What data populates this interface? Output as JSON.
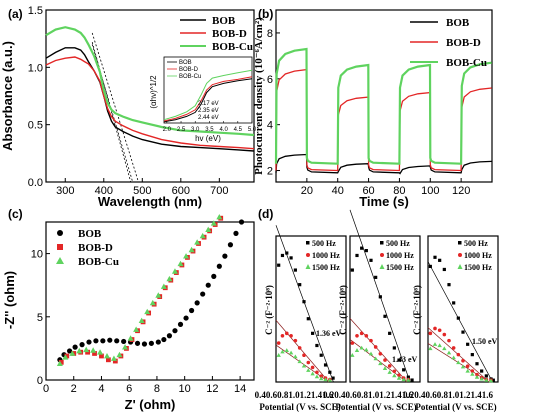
{
  "chart_data": [
    {
      "panel": "(a)",
      "type": "line",
      "xlabel": "Wavelength (nm)",
      "ylabel": "Absorbance (a.u.)",
      "xlim": [
        250,
        790
      ],
      "ylim": [
        0,
        1.5
      ],
      "xticks": [
        300,
        400,
        500,
        600,
        700
      ],
      "yticks": [
        0.0,
        0.5,
        1.0,
        1.5
      ],
      "legend_position": "top-right",
      "series": [
        {
          "name": "BOB",
          "color": "#000000",
          "x": [
            250,
            275,
            300,
            325,
            340,
            350,
            360,
            375,
            390,
            400,
            410,
            420,
            430,
            450,
            475,
            500,
            550,
            600,
            650,
            700,
            750,
            790
          ],
          "y": [
            1.08,
            1.13,
            1.17,
            1.17,
            1.15,
            1.11,
            1.05,
            0.97,
            0.87,
            0.75,
            0.62,
            0.53,
            0.48,
            0.44,
            0.4,
            0.37,
            0.33,
            0.31,
            0.3,
            0.29,
            0.28,
            0.27
          ]
        },
        {
          "name": "BOB-D",
          "color": "#e32626",
          "x": [
            250,
            275,
            300,
            325,
            340,
            350,
            360,
            375,
            390,
            400,
            410,
            420,
            430,
            450,
            475,
            500,
            550,
            600,
            650,
            700,
            750,
            790
          ],
          "y": [
            1.02,
            1.06,
            1.08,
            1.09,
            1.07,
            1.05,
            1.03,
            0.97,
            0.88,
            0.75,
            0.64,
            0.57,
            0.53,
            0.49,
            0.45,
            0.42,
            0.37,
            0.34,
            0.32,
            0.31,
            0.3,
            0.29
          ]
        },
        {
          "name": "BOB-Cu",
          "color": "#5fd35f",
          "x": [
            250,
            275,
            300,
            325,
            340,
            350,
            360,
            375,
            390,
            400,
            410,
            420,
            430,
            450,
            475,
            500,
            550,
            600,
            650,
            700,
            750,
            790
          ],
          "y": [
            1.28,
            1.33,
            1.35,
            1.33,
            1.3,
            1.26,
            1.2,
            1.1,
            0.96,
            0.8,
            0.69,
            0.63,
            0.6,
            0.57,
            0.54,
            0.52,
            0.48,
            0.45,
            0.44,
            0.43,
            0.42,
            0.41
          ]
        }
      ],
      "tangent_lines": [
        {
          "x": [
            370,
            475
          ],
          "y": [
            1.2,
            0.0
          ]
        },
        {
          "x": [
            370,
            470
          ],
          "y": [
            1.22,
            0.0
          ]
        },
        {
          "x": [
            370,
            490
          ],
          "y": [
            1.3,
            0.0
          ]
        }
      ],
      "inset": {
        "xlabel": "hv (eV)",
        "ylabel": "(αhν)^1/2",
        "xlim": [
          1.9,
          5.0
        ],
        "xticks": [
          2.0,
          2.5,
          3.0,
          3.5,
          4.0,
          4.5,
          5.0
        ],
        "x_ticklabels": [
          "2.0",
          "2.5",
          "3.0",
          "3.5",
          "4.0",
          "4.5",
          "5.0"
        ],
        "ylim": [
          0,
          1
        ],
        "legend": [
          "BOB",
          "BOB-D",
          "BOB-Cu"
        ],
        "annotations": [
          "2.17 eV",
          "2.35 eV",
          "2.44 eV"
        ],
        "series": [
          {
            "name": "BOB",
            "color": "#000000",
            "x": [
              1.9,
              2.3,
              2.7,
              3.0,
              3.2,
              3.4,
              3.6,
              4.0,
              4.5,
              5.0
            ],
            "y": [
              0.02,
              0.05,
              0.1,
              0.16,
              0.28,
              0.46,
              0.55,
              0.6,
              0.64,
              0.67
            ]
          },
          {
            "name": "BOB-D",
            "color": "#e32626",
            "x": [
              1.9,
              2.3,
              2.7,
              3.0,
              3.2,
              3.4,
              3.6,
              4.0,
              4.5,
              5.0
            ],
            "y": [
              0.03,
              0.07,
              0.13,
              0.2,
              0.33,
              0.5,
              0.58,
              0.63,
              0.66,
              0.7
            ]
          },
          {
            "name": "BOB-Cu",
            "color": "#5fd35f",
            "x": [
              1.9,
              2.3,
              2.7,
              3.0,
              3.2,
              3.4,
              3.6,
              4.0,
              4.5,
              5.0
            ],
            "y": [
              0.05,
              0.1,
              0.17,
              0.26,
              0.42,
              0.6,
              0.68,
              0.72,
              0.76,
              0.8
            ]
          }
        ]
      }
    },
    {
      "panel": "(b)",
      "type": "line",
      "xlabel": "Time (s)",
      "ylabel": "Photocurrent density (10⁻⁶A/cm²)",
      "xlim": [
        0,
        140
      ],
      "ylim": [
        1.5,
        9
      ],
      "xticks": [
        20,
        40,
        60,
        80,
        100,
        120
      ],
      "yticks": [
        2,
        4,
        6,
        8
      ],
      "legend_position": "top-right",
      "on_off_period_s": 20,
      "series": [
        {
          "name": "BOB",
          "color": "#000000",
          "dark_level": 1.9,
          "on_peak": 3.0,
          "on_steady": [
            2.7,
            2.3,
            2.2,
            2.4,
            2.4,
            2.5,
            2.6
          ]
        },
        {
          "name": "BOB-D",
          "color": "#e32626",
          "dark_level": 2.0,
          "on_peak": 6.5,
          "on_steady": [
            6.4,
            5.2,
            5.4,
            5.6,
            5.8,
            6.0,
            6.4
          ]
        },
        {
          "name": "BOB-Cu",
          "color": "#5fd35f",
          "dark_level": 2.3,
          "on_peak": 7.4,
          "on_steady": [
            7.3,
            6.6,
            6.6,
            6.7,
            6.8,
            6.8,
            6.9
          ]
        }
      ]
    },
    {
      "panel": "(c)",
      "type": "scatter",
      "xlabel": "Z' (ohm)",
      "ylabel": "-Z'' (ohm)",
      "xlim": [
        0,
        15
      ],
      "ylim": [
        0,
        12.5
      ],
      "xticks": [
        0,
        2,
        4,
        6,
        8,
        10,
        12,
        14
      ],
      "yticks": [
        0,
        5,
        10
      ],
      "legend_position": "top-left",
      "series": [
        {
          "name": "BOB",
          "color": "#000000",
          "marker": "circle",
          "x": [
            1.0,
            1.3,
            1.7,
            2.1,
            2.6,
            3.1,
            3.6,
            4.1,
            4.6,
            5.1,
            5.6,
            6.1,
            6.6,
            7.1,
            7.6,
            8.1,
            8.5,
            8.9,
            9.3,
            9.7,
            10.1,
            10.5,
            10.9,
            11.3,
            11.7,
            12.1,
            12.5,
            12.9,
            13.3,
            13.7,
            14.1
          ],
          "y": [
            1.6,
            2.0,
            2.3,
            2.6,
            2.8,
            3.0,
            3.1,
            3.1,
            3.15,
            3.1,
            3.05,
            3.0,
            2.9,
            2.85,
            2.9,
            3.0,
            3.2,
            3.5,
            3.9,
            4.4,
            4.9,
            5.5,
            6.1,
            6.8,
            7.5,
            8.2,
            9.0,
            9.8,
            10.7,
            11.6,
            12.5
          ]
        },
        {
          "name": "BOB-D",
          "color": "#e32626",
          "marker": "square",
          "x": [
            1.1,
            1.5,
            2.0,
            2.5,
            3.0,
            3.5,
            4.0,
            4.5,
            5.0,
            5.4,
            5.8,
            6.2,
            6.6,
            7.0,
            7.4,
            7.8,
            8.2,
            8.6,
            9.0,
            9.4,
            9.8,
            10.2,
            10.6,
            11.0,
            11.4,
            11.8,
            12.2,
            12.6
          ],
          "y": [
            1.4,
            1.9,
            2.1,
            2.2,
            2.2,
            2.1,
            1.9,
            1.6,
            1.5,
            1.9,
            2.5,
            3.2,
            3.9,
            4.6,
            5.3,
            6.0,
            6.6,
            7.3,
            7.9,
            8.5,
            9.1,
            9.7,
            10.2,
            10.8,
            11.3,
            11.8,
            12.3,
            12.8
          ]
        },
        {
          "name": "BOB-Cu",
          "color": "#5fd35f",
          "marker": "triangle",
          "x": [
            1.0,
            1.4,
            1.9,
            2.4,
            2.9,
            3.4,
            3.9,
            4.4,
            4.9,
            5.3,
            5.7,
            6.1,
            6.5,
            6.9,
            7.3,
            7.7,
            8.1,
            8.5,
            8.9,
            9.3,
            9.7,
            10.1,
            10.5,
            10.9,
            11.3,
            11.7,
            12.1,
            12.5
          ],
          "y": [
            1.3,
            1.8,
            2.1,
            2.3,
            2.4,
            2.35,
            2.2,
            1.9,
            1.7,
            2.0,
            2.6,
            3.3,
            4.0,
            4.7,
            5.4,
            6.1,
            6.7,
            7.4,
            8.0,
            8.6,
            9.2,
            9.8,
            10.3,
            10.9,
            11.4,
            11.9,
            12.4,
            12.9
          ]
        }
      ]
    },
    {
      "panel": "(d)",
      "type": "scatter",
      "xlabel": "Potential (V vs. SCE)",
      "ylabel": "C⁻² (F⁻²·10⁸)",
      "legend": [
        "500 Hz",
        "1000 Hz",
        "1500 Hz"
      ],
      "legend_colors": [
        "#000000",
        "#e32626",
        "#5fd35f"
      ],
      "xticks_text": [
        "0.40.60.81.01.21.41.6",
        "0.20.40.60.81.01.21.41.6",
        "0.20.40.60.81.01.21.41.6"
      ],
      "flatband_labels": [
        "1.36 eV",
        "1.43 eV",
        "1.50 eV"
      ],
      "subplots": [
        {
          "xlim": [
            0.3,
            1.6
          ],
          "ylim": [
            0,
            3
          ],
          "series": [
            {
              "name": "500 Hz",
              "x": [
                0.35,
                0.42,
                0.5,
                0.58,
                0.66,
                0.74,
                0.82,
                0.9,
                0.98,
                1.06,
                1.14,
                1.22,
                1.3,
                1.36
              ],
              "y": [
                2.4,
                2.6,
                2.65,
                2.55,
                2.3,
                2.0,
                1.65,
                1.3,
                1.0,
                0.75,
                0.55,
                0.35,
                0.2,
                0.08
              ]
            },
            {
              "name": "1000 Hz",
              "x": [
                0.35,
                0.42,
                0.5,
                0.58,
                0.66,
                0.74,
                0.82,
                0.9,
                0.98,
                1.06,
                1.14,
                1.22,
                1.3
              ],
              "y": [
                0.8,
                0.95,
                1.0,
                0.95,
                0.85,
                0.7,
                0.55,
                0.4,
                0.3,
                0.2,
                0.12,
                0.08,
                0.05
              ]
            },
            {
              "name": "1500 Hz",
              "x": [
                0.35,
                0.42,
                0.5,
                0.58,
                0.66,
                0.74,
                0.82,
                0.9,
                0.98,
                1.06,
                1.14,
                1.22,
                1.3
              ],
              "y": [
                0.55,
                0.62,
                0.65,
                0.6,
                0.52,
                0.42,
                0.33,
                0.24,
                0.17,
                0.11,
                0.07,
                0.05,
                0.04
              ]
            }
          ]
        },
        {
          "xlim": [
            0.1,
            1.6
          ],
          "ylim": [
            0,
            3
          ],
          "series": [
            {
              "name": "500 Hz",
              "x": [
                0.15,
                0.25,
                0.35,
                0.45,
                0.55,
                0.65,
                0.75,
                0.85,
                0.95,
                1.05,
                1.15,
                1.25,
                1.35,
                1.43
              ],
              "y": [
                2.3,
                2.6,
                2.75,
                2.7,
                2.5,
                2.15,
                1.75,
                1.35,
                1.0,
                0.7,
                0.45,
                0.25,
                0.1,
                0.04
              ]
            },
            {
              "name": "1000 Hz",
              "x": [
                0.15,
                0.25,
                0.35,
                0.45,
                0.55,
                0.65,
                0.75,
                0.85,
                0.95,
                1.05,
                1.15,
                1.25,
                1.35
              ],
              "y": [
                0.8,
                0.95,
                1.0,
                0.95,
                0.85,
                0.72,
                0.58,
                0.45,
                0.33,
                0.22,
                0.14,
                0.08,
                0.05
              ]
            },
            {
              "name": "1500 Hz",
              "x": [
                0.15,
                0.25,
                0.35,
                0.45,
                0.55,
                0.65,
                0.75,
                0.85,
                0.95,
                1.05,
                1.15,
                1.25,
                1.35
              ],
              "y": [
                0.55,
                0.65,
                0.7,
                0.66,
                0.58,
                0.48,
                0.38,
                0.28,
                0.2,
                0.13,
                0.08,
                0.05,
                0.04
              ]
            }
          ]
        },
        {
          "xlim": [
            0.1,
            1.6
          ],
          "ylim": [
            0,
            2.4
          ],
          "series": [
            {
              "name": "500 Hz",
              "x": [
                0.15,
                0.25,
                0.35,
                0.45,
                0.55,
                0.65,
                0.75,
                0.85,
                0.95,
                1.05,
                1.15,
                1.25,
                1.35,
                1.45,
                1.5
              ],
              "y": [
                1.9,
                2.05,
                2.0,
                1.85,
                1.6,
                1.3,
                1.05,
                0.82,
                0.62,
                0.45,
                0.3,
                0.18,
                0.1,
                0.05,
                0.03
              ]
            },
            {
              "name": "1000 Hz",
              "x": [
                0.15,
                0.25,
                0.35,
                0.45,
                0.55,
                0.65,
                0.75,
                0.85,
                0.95,
                1.05,
                1.15,
                1.25,
                1.35,
                1.45
              ],
              "y": [
                0.8,
                0.88,
                0.85,
                0.78,
                0.68,
                0.56,
                0.45,
                0.35,
                0.26,
                0.18,
                0.12,
                0.07,
                0.04,
                0.03
              ]
            },
            {
              "name": "1500 Hz",
              "x": [
                0.15,
                0.25,
                0.35,
                0.45,
                0.55,
                0.65,
                0.75,
                0.85,
                0.95,
                1.05,
                1.15,
                1.25,
                1.35,
                1.45
              ],
              "y": [
                0.55,
                0.62,
                0.6,
                0.55,
                0.48,
                0.4,
                0.32,
                0.25,
                0.18,
                0.13,
                0.08,
                0.05,
                0.03,
                0.02
              ]
            }
          ]
        }
      ]
    }
  ]
}
